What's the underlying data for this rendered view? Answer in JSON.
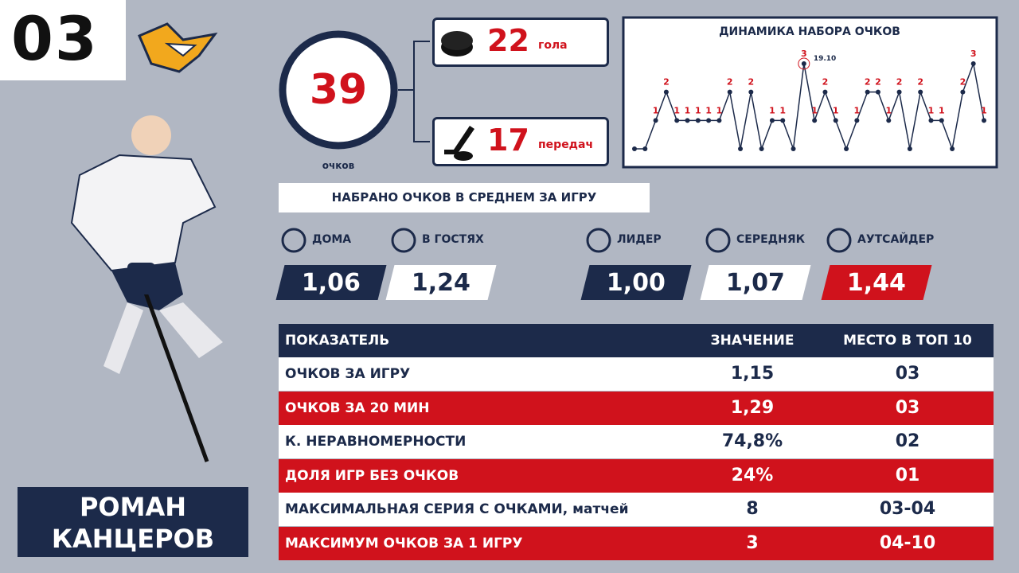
{
  "header": {
    "number": "03"
  },
  "player": {
    "name_line1": "РОМАН",
    "name_line2": "КАНЦЕРОВ"
  },
  "totals": {
    "points": "39",
    "points_label": "очков",
    "goals": "22",
    "goals_label": "гола",
    "assists": "17",
    "assists_label": "передач"
  },
  "chart_data": {
    "type": "line",
    "title": "ДИНАМИКА НАБОРА ОЧКОВ",
    "values": [
      0,
      0,
      1,
      2,
      1,
      1,
      1,
      1,
      1,
      2,
      0,
      2,
      0,
      1,
      1,
      0,
      3,
      1,
      2,
      1,
      0,
      1,
      2,
      2,
      1,
      2,
      0,
      2,
      1,
      1,
      0,
      2,
      3,
      1
    ],
    "annotation": "19.10",
    "color": "#1c2a4a",
    "label_color": "#d0121c"
  },
  "averages": {
    "title": "НАБРАНО ОЧКОВ В СРЕДНЕМ ЗА ИГРУ",
    "items": [
      {
        "label": "ДОМА",
        "value": "1,06"
      },
      {
        "label": "В ГОСТЯХ",
        "value": "1,24"
      },
      {
        "label": "ЛИДЕР",
        "value": "1,00"
      },
      {
        "label": "СЕРЕДНЯК",
        "value": "1,07"
      },
      {
        "label": "АУТСАЙДЕР",
        "value": "1,44"
      }
    ]
  },
  "table": {
    "header": [
      "ПОКАЗАТЕЛЬ",
      "ЗНАЧЕНИЕ",
      "МЕСТО В ТОП 10"
    ],
    "rows": [
      [
        "ОЧКОВ ЗА ИГРУ",
        "1,15",
        "03"
      ],
      [
        "ОЧКОВ ЗА 20 МИН",
        "1,29",
        "03"
      ],
      [
        "К. НЕРАВНОМЕРНОСТИ",
        "74,8%",
        "02"
      ],
      [
        "ДОЛЯ ИГР БЕЗ ОЧКОВ",
        "24%",
        "01"
      ],
      [
        "МАКСИМАЛЬНАЯ СЕРИЯ С ОЧКАМИ, матчей",
        "8",
        "03-04"
      ],
      [
        "МАКСИМУМ ОЧКОВ ЗА 1 ИГРУ",
        "3",
        "04-10"
      ]
    ]
  }
}
